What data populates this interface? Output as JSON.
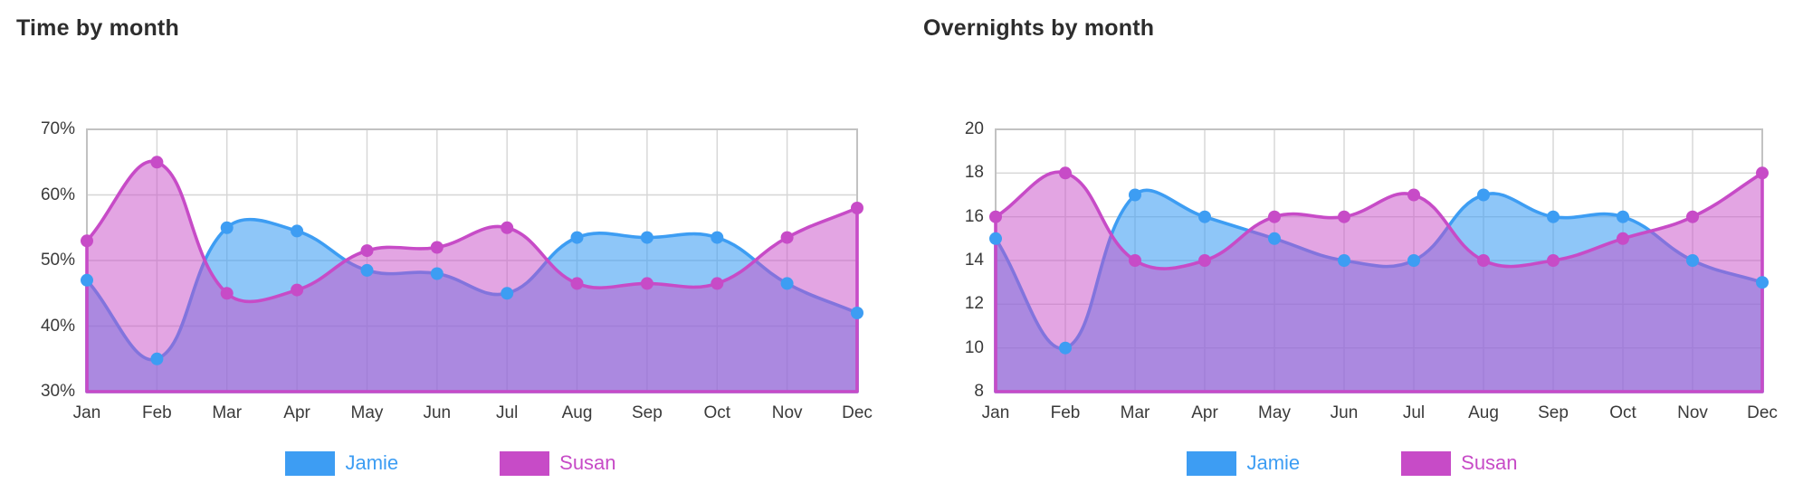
{
  "chart_data": [
    {
      "type": "area",
      "title": "Time by month",
      "categories": [
        "Jan",
        "Feb",
        "Mar",
        "Apr",
        "May",
        "Jun",
        "Jul",
        "Aug",
        "Sep",
        "Oct",
        "Nov",
        "Dec"
      ],
      "series": [
        {
          "name": "Jamie",
          "color": "#3d9df3",
          "fill": "rgba(61,157,243,0.58)",
          "values": [
            47,
            35,
            55,
            54.5,
            48.5,
            48,
            45,
            53.5,
            53.5,
            53.5,
            46.5,
            42
          ]
        },
        {
          "name": "Susan",
          "color": "#c74bc7",
          "fill": "rgba(199,75,199,0.5)",
          "values": [
            53,
            65,
            45,
            45.5,
            51.5,
            52,
            55,
            46.5,
            46.5,
            46.5,
            53.5,
            58
          ]
        }
      ],
      "ylim": [
        30,
        70
      ],
      "ytick_step": 10,
      "ytick_labels": [
        "30%",
        "40%",
        "50%",
        "60%",
        "70%"
      ],
      "xlabel": "",
      "ylabel": "",
      "grid": true,
      "legend_position": "bottom"
    },
    {
      "type": "area",
      "title": "Overnights by month",
      "categories": [
        "Jan",
        "Feb",
        "Mar",
        "Apr",
        "May",
        "Jun",
        "Jul",
        "Aug",
        "Sep",
        "Oct",
        "Nov",
        "Dec"
      ],
      "series": [
        {
          "name": "Jamie",
          "color": "#3d9df3",
          "fill": "rgba(61,157,243,0.58)",
          "values": [
            15,
            10,
            17,
            16,
            15,
            14,
            14,
            17,
            16,
            16,
            14,
            13
          ]
        },
        {
          "name": "Susan",
          "color": "#c74bc7",
          "fill": "rgba(199,75,199,0.5)",
          "values": [
            16,
            18,
            14,
            14,
            16,
            16,
            17,
            14,
            14,
            15,
            16,
            18
          ]
        }
      ],
      "ylim": [
        8,
        20
      ],
      "ytick_step": 2,
      "ytick_labels": [
        "8",
        "10",
        "12",
        "14",
        "16",
        "18",
        "20"
      ],
      "xlabel": "",
      "ylabel": "",
      "grid": true,
      "legend_position": "bottom"
    }
  ],
  "colors": {
    "grid": "#d6d6d6",
    "border": "#c2c2c2",
    "axis_text": "#3a3a3a",
    "title_text": "#2d2d2d",
    "background": "#ffffff"
  }
}
